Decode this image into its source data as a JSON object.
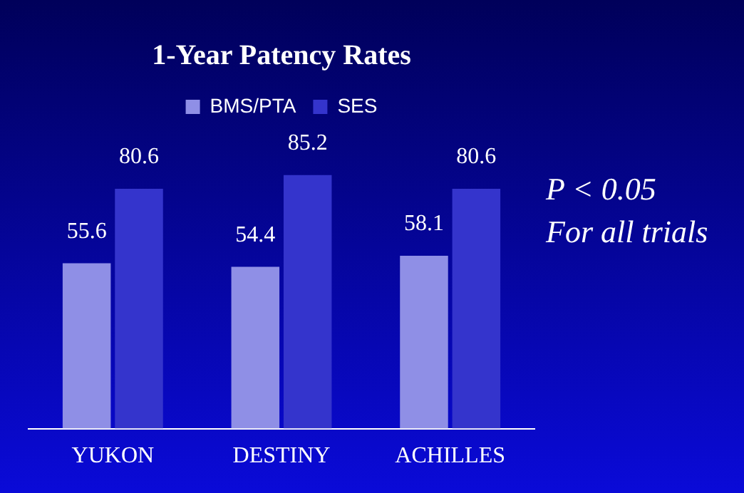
{
  "chart_data": {
    "type": "bar",
    "title": "1-Year Patency Rates",
    "categories": [
      "YUKON",
      "DESTINY",
      "ACHILLES"
    ],
    "series": [
      {
        "name": "BMS/PTA",
        "color": "#8f8fe6",
        "values": [
          55.6,
          54.4,
          58.1
        ]
      },
      {
        "name": "SES",
        "color": "#3434cc",
        "values": [
          80.6,
          85.2,
          80.6
        ]
      }
    ],
    "data_labels": true,
    "legend": "top",
    "grid": false,
    "annotations": [
      "P < 0.05\nFor all trials"
    ]
  }
}
